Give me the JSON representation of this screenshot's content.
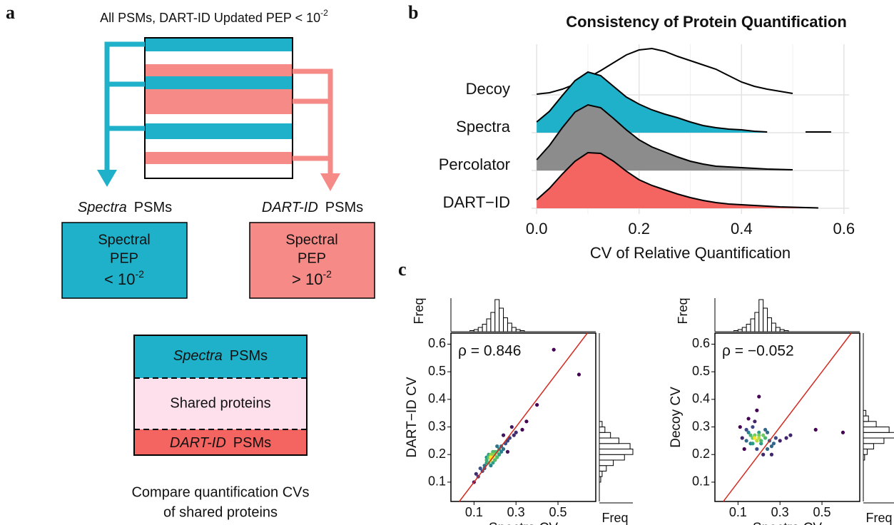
{
  "panel_labels": [
    "a",
    "b",
    "c"
  ],
  "diagram": {
    "title": "All PSMs, DART-ID Updated PEP < 10",
    "title_exponent": "-2",
    "left_label": {
      "italic": "Spectra",
      "text": "PSMs"
    },
    "right_label": {
      "italic": "DART-ID",
      "text": "PSMs"
    },
    "left_box": {
      "lines": [
        "Spectral",
        "PEP"
      ],
      "threshold": "< 10",
      "exponent": "-2"
    },
    "right_box": {
      "lines": [
        "Spectral",
        "PEP"
      ],
      "threshold": "> 10",
      "exponent": "-2"
    },
    "stack": [
      {
        "italic": "Spectra",
        "text": "PSMs"
      },
      {
        "text": "Shared proteins"
      },
      {
        "italic": "DART-ID",
        "text": "PSMs"
      }
    ],
    "caption": [
      "Compare quantification CVs",
      "of shared proteins"
    ]
  },
  "chart_data": [
    {
      "type": "ridgeline",
      "title": "Consistency of Protein Quantification",
      "xlabel": "CV of Relative Quantification",
      "x": [
        0,
        0.025,
        0.05,
        0.075,
        0.1,
        0.125,
        0.15,
        0.175,
        0.2,
        0.225,
        0.25,
        0.275,
        0.3,
        0.325,
        0.35,
        0.375,
        0.4,
        0.425,
        0.45,
        0.475,
        0.5,
        0.525,
        0.55,
        0.575,
        0.6
      ],
      "series": [
        {
          "name": "Decoy",
          "color": null,
          "values": [
            0.1,
            0.3,
            0.8,
            1.5,
            2.4,
            3.4,
            4.5,
            5.6,
            6.3,
            6.5,
            6.1,
            5.4,
            4.8,
            4.2,
            3.6,
            2.7,
            1.8,
            1.2,
            0.8,
            0.5,
            0.2,
            null,
            null,
            null,
            null
          ]
        },
        {
          "name": "Spectra",
          "color": "#1fb1c9",
          "values": [
            1.5,
            3,
            5.2,
            7.3,
            8.5,
            8.0,
            6.5,
            5.0,
            4.0,
            3.2,
            2.6,
            2.1,
            1.5,
            1.0,
            0.7,
            0.5,
            0.4,
            0.2,
            0.1,
            null,
            null,
            0.1,
            0.1,
            0.1,
            null
          ]
        },
        {
          "name": "Percolator",
          "color": "#8c8c8c",
          "values": [
            1.5,
            3.5,
            6,
            8.2,
            9.2,
            8.8,
            7.3,
            5.7,
            4.3,
            3.3,
            2.6,
            1.9,
            1.3,
            0.9,
            0.6,
            0.5,
            0.4,
            0.3,
            0.2,
            0.15,
            0.1,
            null,
            null,
            null,
            null
          ]
        },
        {
          "name": "DART−ID",
          "color": "#f46461",
          "values": [
            1.2,
            2.8,
            4.8,
            6.6,
            7.8,
            7.7,
            6.6,
            5.2,
            4.0,
            3.2,
            2.6,
            2.0,
            1.5,
            1.1,
            0.8,
            0.6,
            0.5,
            0.4,
            0.3,
            0.2,
            0.15,
            0.1,
            0.05,
            null,
            null
          ]
        }
      ],
      "xlim": [
        -0.01,
        0.61
      ],
      "xticks": [
        {
          "value": 0,
          "label": "0.0"
        },
        0.2,
        0.4,
        0.6
      ],
      "minor_xticks": [
        0.1,
        0.3,
        0.5
      ],
      "grid": true
    },
    {
      "type": "scatter",
      "xlabel": "Spectra CV",
      "ylabel": "DART−ID CV",
      "annotation": "ρ = 0.846",
      "hist_label": "Freq",
      "identity_line": true,
      "line_color": "#d42a20",
      "x": [
        0.12,
        0.14,
        0.15,
        0.16,
        0.17,
        0.18,
        0.18,
        0.19,
        0.19,
        0.2,
        0.2,
        0.21,
        0.22,
        0.23,
        0.24,
        0.25,
        0.26,
        0.17,
        0.16,
        0.15,
        0.2,
        0.22,
        0.19,
        0.18,
        0.21,
        0.13,
        0.27,
        0.28,
        0.3,
        0.24,
        0.23,
        0.35,
        0.4,
        0.48,
        0.6,
        0.1,
        0.11,
        0.17,
        0.19,
        0.2,
        0.26,
        0.29,
        0.33,
        0.21,
        0.18,
        0.16
      ],
      "y": [
        0.12,
        0.14,
        0.16,
        0.17,
        0.17,
        0.18,
        0.19,
        0.19,
        0.2,
        0.2,
        0.21,
        0.21,
        0.22,
        0.23,
        0.22,
        0.24,
        0.25,
        0.19,
        0.18,
        0.15,
        0.18,
        0.2,
        0.17,
        0.2,
        0.19,
        0.15,
        0.26,
        0.3,
        0.28,
        0.27,
        0.21,
        0.32,
        0.38,
        0.58,
        0.49,
        0.1,
        0.13,
        0.2,
        0.21,
        0.18,
        0.21,
        0.27,
        0.29,
        0.23,
        0.16,
        0.19
      ],
      "xlim": [
        -0.01,
        0.68
      ],
      "ylim": [
        0.03,
        0.64
      ],
      "xticks": [
        0.1,
        0.3,
        0.5
      ],
      "yticks": [
        0.1,
        0.2,
        0.3,
        0.4,
        0.5,
        0.6
      ],
      "x_hist": {
        "bins": [
          0.08,
          0.1,
          0.12,
          0.14,
          0.16,
          0.18,
          0.2,
          0.22,
          0.24,
          0.26,
          0.28,
          0.3,
          0.32,
          0.34
        ],
        "counts": [
          1,
          2,
          4,
          7,
          12,
          18,
          30,
          22,
          13,
          8,
          4,
          2,
          1
        ]
      },
      "y_hist": {
        "bins": [
          0.1,
          0.12,
          0.14,
          0.16,
          0.18,
          0.2,
          0.22,
          0.24,
          0.26,
          0.28,
          0.3,
          0.32
        ],
        "counts": [
          1,
          2,
          5,
          10,
          18,
          24,
          22,
          14,
          8,
          4,
          2
        ]
      }
    },
    {
      "type": "scatter",
      "xlabel": "Spectra CV",
      "ylabel": "Decoy CV",
      "annotation": "ρ = −0.052",
      "hist_label": "Freq",
      "identity_line": true,
      "line_color": "#d42a20",
      "x": [
        0.12,
        0.14,
        0.15,
        0.16,
        0.17,
        0.18,
        0.18,
        0.19,
        0.2,
        0.2,
        0.21,
        0.22,
        0.23,
        0.24,
        0.25,
        0.26,
        0.17,
        0.16,
        0.19,
        0.2,
        0.22,
        0.13,
        0.28,
        0.3,
        0.35,
        0.33,
        0.47,
        0.6,
        0.11,
        0.18,
        0.21,
        0.27,
        0.19,
        0.24,
        0.15,
        0.23,
        0.17,
        0.2,
        0.14,
        0.26
      ],
      "y": [
        0.26,
        0.25,
        0.28,
        0.27,
        0.26,
        0.26,
        0.27,
        0.25,
        0.26,
        0.28,
        0.24,
        0.27,
        0.29,
        0.22,
        0.25,
        0.23,
        0.3,
        0.24,
        0.36,
        0.41,
        0.2,
        0.22,
        0.26,
        0.25,
        0.27,
        0.26,
        0.29,
        0.28,
        0.3,
        0.32,
        0.25,
        0.24,
        0.22,
        0.28,
        0.33,
        0.26,
        0.24,
        0.27,
        0.29,
        0.2
      ],
      "xlim": [
        -0.01,
        0.68
      ],
      "ylim": [
        0.03,
        0.64
      ],
      "xticks": [
        0.1,
        0.3,
        0.5
      ],
      "yticks": [
        0.1,
        0.2,
        0.3,
        0.4,
        0.5,
        0.6
      ],
      "x_hist": {
        "bins": [
          0.08,
          0.1,
          0.12,
          0.14,
          0.16,
          0.18,
          0.2,
          0.22,
          0.24,
          0.26,
          0.28,
          0.3,
          0.32,
          0.34
        ],
        "counts": [
          1,
          2,
          4,
          7,
          12,
          18,
          30,
          22,
          13,
          8,
          4,
          2,
          1
        ]
      },
      "y_hist": {
        "bins": [
          0.18,
          0.2,
          0.22,
          0.24,
          0.26,
          0.28,
          0.3,
          0.32,
          0.34,
          0.36
        ],
        "counts": [
          1,
          3,
          8,
          16,
          26,
          20,
          10,
          4,
          2
        ]
      }
    }
  ]
}
